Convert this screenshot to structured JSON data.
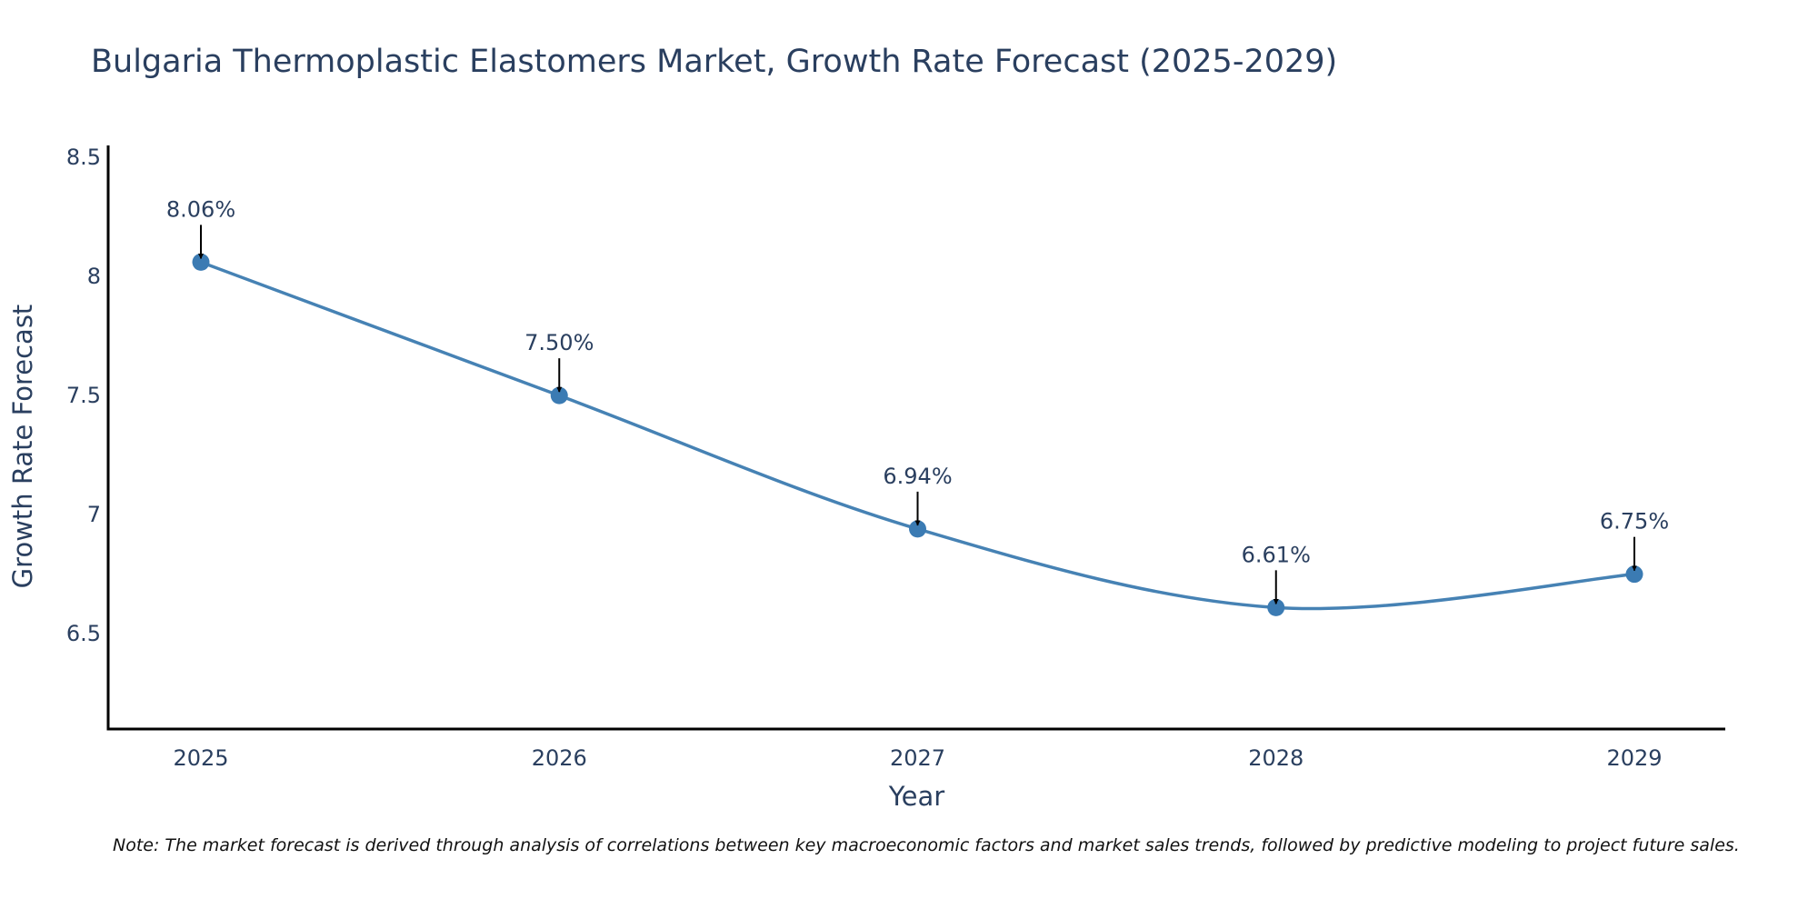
{
  "chart_data": {
    "type": "line",
    "title": "Bulgaria Thermoplastic Elastomers Market, Growth Rate Forecast (2025-2029)",
    "xlabel": "Year",
    "ylabel": "Growth Rate Forecast",
    "categories": [
      "2025",
      "2026",
      "2027",
      "2028",
      "2029"
    ],
    "values": [
      8.06,
      7.5,
      6.94,
      6.61,
      6.75
    ],
    "data_labels": [
      "8.06%",
      "7.50%",
      "6.94%",
      "6.61%",
      "6.75%"
    ],
    "y_ticks": [
      6.5,
      7,
      7.5,
      8,
      8.5
    ],
    "y_tick_labels": [
      "6.5",
      "7",
      "7.5",
      "8",
      "8.5"
    ],
    "ylim": [
      6.1,
      8.55
    ],
    "line_shape": "spline",
    "grid": false,
    "colors": {
      "line": "#4682b4",
      "marker": "#3b7bb3",
      "arrow": "#000000",
      "axis": "#000000",
      "text": "#2a3f5f"
    }
  },
  "note": "Note: The market forecast is derived through analysis of correlations between key macroeconomic factors and market sales trends, followed by predictive modeling to project future sales."
}
